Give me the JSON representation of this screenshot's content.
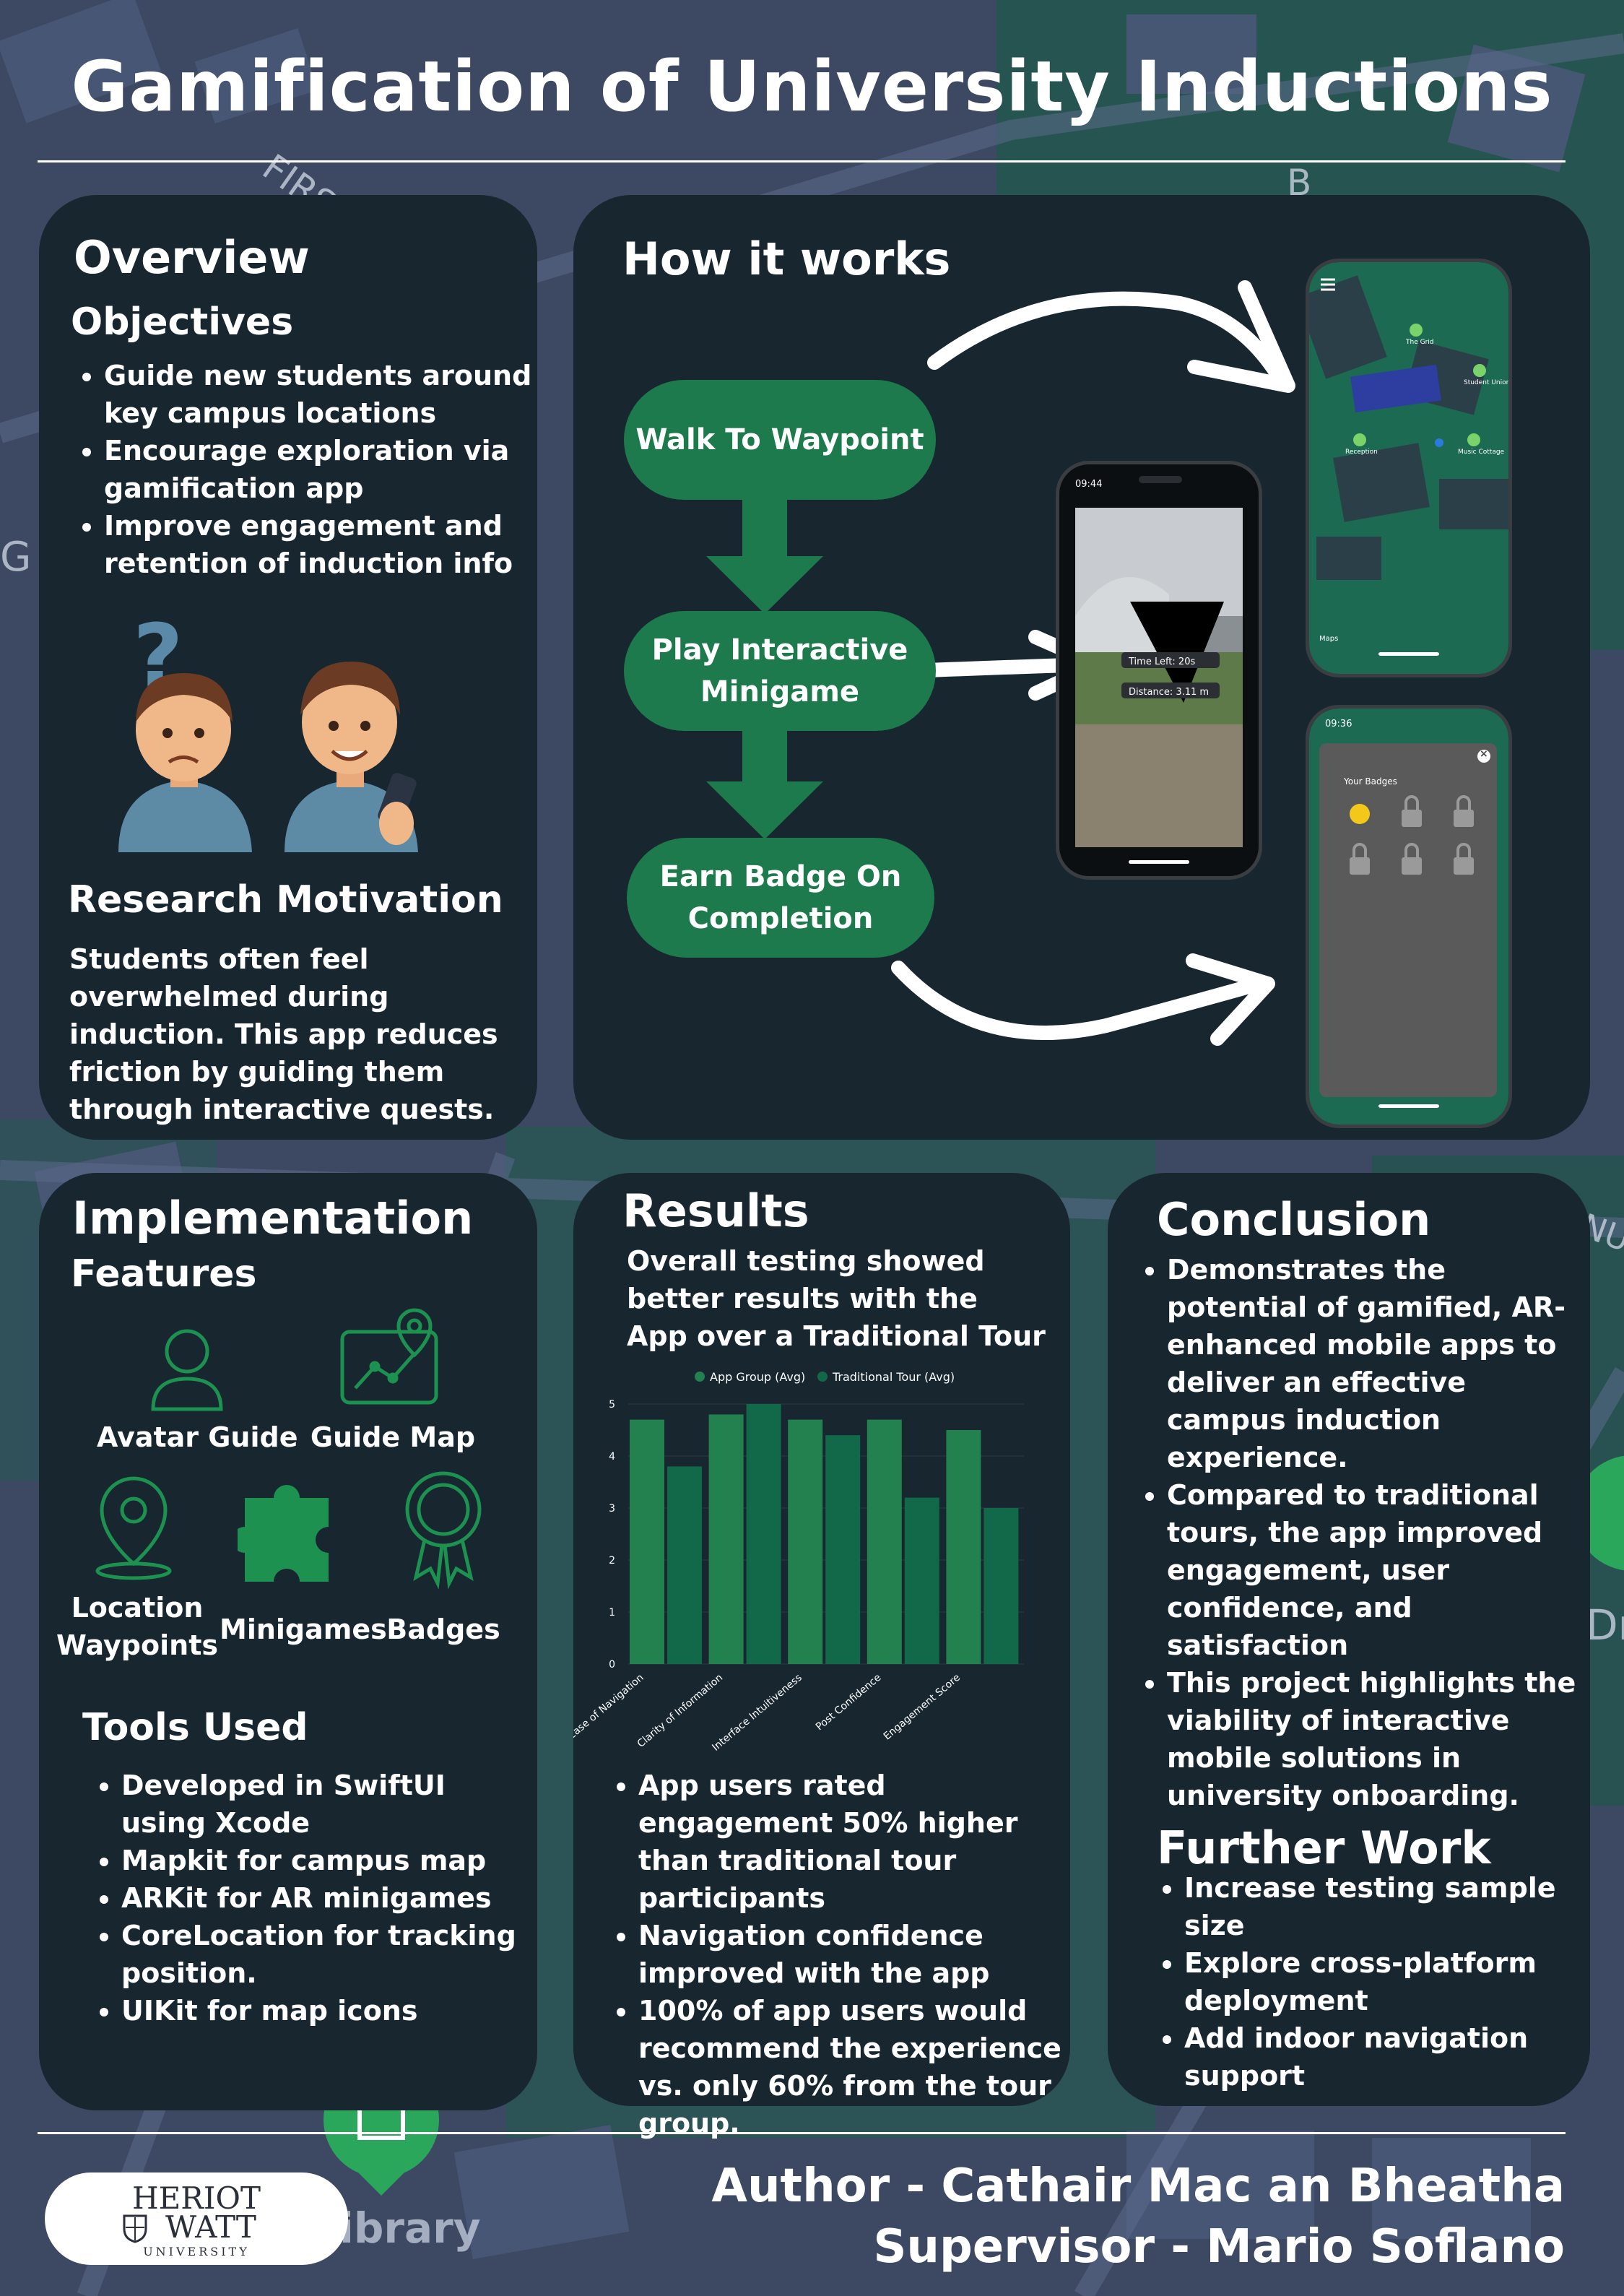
{
  "title": "Gamification of University Inductions",
  "background": {
    "street_labels": [
      "FIRST",
      "G",
      "B",
      "NU",
      "Dr",
      "ibrary"
    ]
  },
  "colors": {
    "panel": "#17262f",
    "accent_green": "#1c7a4c",
    "app_group": "#23814f",
    "traditional_tour": "#11694a",
    "text": "#ffffff"
  },
  "overview": {
    "heading": "Overview",
    "objectives_heading": "Objectives",
    "objectives": [
      "Guide new students around key campus locations",
      "Encourage exploration via gamification app",
      "Improve engagement and retention of induction info"
    ],
    "illustration_icons": [
      "confused-student-icon",
      "happy-student-with-phone-icon"
    ],
    "question_mark": "?",
    "motivation_heading": "Research Motivation",
    "motivation_text": "Students often feel overwhelmed during induction. This app reduces friction by guiding them through interactive quests."
  },
  "how_it_works": {
    "heading": "How it works",
    "steps": [
      "Walk To Waypoint",
      "Play Interactive Minigame",
      "Earn Badge On Completion"
    ],
    "map_screen": {
      "labels": [
        "The Grid",
        "Student Union",
        "Reception",
        "Music Cottage"
      ],
      "footer": "Maps"
    },
    "ar_screen": {
      "status_time": "09:44",
      "time_left": "Time Left: 20s",
      "distance": "Distance: 3.11 m"
    },
    "badges_screen": {
      "status_time": "09:36",
      "title": "Your Badges",
      "close_symbol": "×"
    }
  },
  "implementation": {
    "heading": "Implementation",
    "features_heading": "Features",
    "features": [
      {
        "label": "Avatar Guide",
        "icon": "avatar-icon"
      },
      {
        "label": "Guide Map",
        "icon": "guide-map-icon"
      },
      {
        "label": "Location Waypoints",
        "icon": "location-pin-icon"
      },
      {
        "label": "Minigames",
        "icon": "puzzle-icon"
      },
      {
        "label": "Badges",
        "icon": "badge-icon"
      }
    ],
    "tools_heading": "Tools Used",
    "tools": [
      "Developed in SwiftUI using Xcode",
      "Mapkit for campus map",
      "ARKit for AR minigames",
      "CoreLocation for tracking position.",
      "UIKit for map icons"
    ]
  },
  "results": {
    "heading": "Results",
    "intro": "Overall testing showed better results with the App over a Traditional Tour",
    "bullets": [
      "App users rated engagement 50% higher than traditional tour participants",
      "Navigation confidence improved with the app",
      "100% of app users would recommend the experience vs. only 60% from the tour group."
    ]
  },
  "chart_data": {
    "type": "bar",
    "categories": [
      "Ease of Navigation",
      "Clarity of Information",
      "Interface Intuitiveness",
      "Post Confidence",
      "Engagement Score"
    ],
    "series": [
      {
        "name": "App Group (Avg)",
        "values": [
          4.7,
          4.8,
          4.7,
          4.7,
          4.5
        ],
        "color": "#23814f"
      },
      {
        "name": "Traditional Tour (Avg)",
        "values": [
          3.8,
          5.0,
          4.4,
          3.2,
          3.0
        ],
        "color": "#11694a"
      }
    ],
    "yticks": [
      0,
      1,
      2,
      3,
      4,
      5
    ],
    "ylim": [
      0,
      5
    ],
    "grid": true,
    "legend_position": "top"
  },
  "conclusion": {
    "heading": "Conclusion",
    "bullets": [
      "Demonstrates the potential of gamified, AR-enhanced mobile apps to deliver an effective campus induction experience.",
      "Compared to traditional tours, the app improved engagement, user confidence, and satisfaction",
      "This project highlights the viability of interactive mobile solutions in university onboarding."
    ],
    "further_heading": "Further Work",
    "further": [
      "Increase testing sample size",
      "Explore cross-platform deployment",
      "Add indoor navigation support"
    ]
  },
  "footer": {
    "author": "Author - Cathair Mac an Bheatha",
    "supervisor": "Supervisor - Mario Soflano",
    "logo_line1": "HERIOT",
    "logo_line2": "WATT",
    "logo_line3": "UNIVERSITY"
  }
}
